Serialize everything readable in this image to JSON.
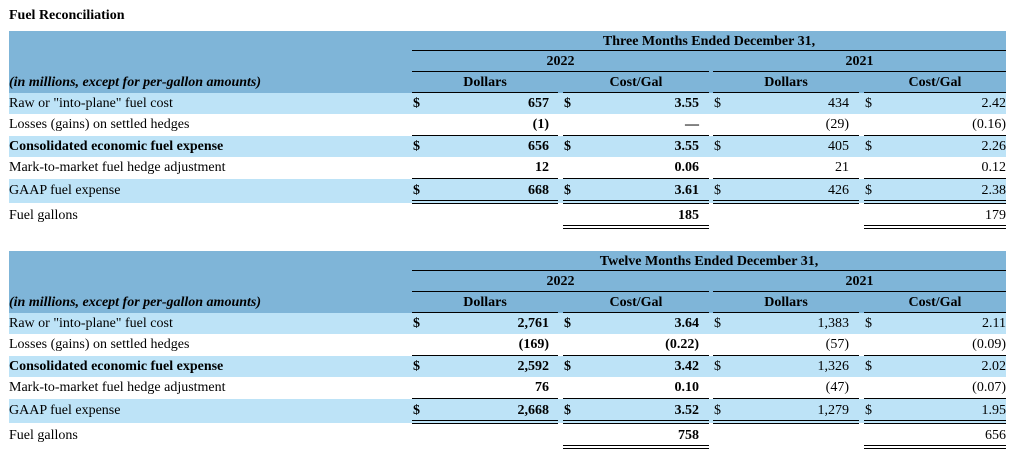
{
  "title": "Fuel Reconciliation",
  "sections": [
    {
      "period": "Three Months Ended December 31,",
      "year_current": "2022",
      "year_prior": "2021",
      "row_header": "(in millions, except for per-gallon amounts)",
      "col_dollars": "Dollars",
      "col_costgal": "Cost/Gal",
      "rows": [
        {
          "label": "Raw or \"into-plane\" fuel cost",
          "bold": false,
          "cs": "$",
          "cd": "657",
          "cgs": "$",
          "cg": "3.55",
          "ps": "$",
          "pd": "434",
          "pgs": "$",
          "pg": "2.42"
        },
        {
          "label": "Losses (gains) on settled hedges",
          "bold": false,
          "cs": "",
          "cd": "(1)",
          "cgs": "",
          "cg": "—",
          "ps": "",
          "pd": "(29)",
          "pgs": "",
          "pg": "(0.16)"
        },
        {
          "label": "Consolidated economic fuel expense",
          "bold": true,
          "cs": "$",
          "cd": "656",
          "cgs": "$",
          "cg": "3.55",
          "ps": "$",
          "pd": "405",
          "pgs": "$",
          "pg": "2.26"
        },
        {
          "label": "Mark-to-market fuel hedge adjustment",
          "bold": false,
          "cs": "",
          "cd": "12",
          "cgs": "",
          "cg": "0.06",
          "ps": "",
          "pd": "21",
          "pgs": "",
          "pg": "0.12"
        },
        {
          "label": "GAAP fuel expense",
          "bold": false,
          "cs": "$",
          "cd": "668",
          "cgs": "$",
          "cg": "3.61",
          "ps": "$",
          "pd": "426",
          "pgs": "$",
          "pg": "2.38"
        }
      ],
      "gallons_label": "Fuel gallons",
      "gallons_current": "185",
      "gallons_prior": "179"
    },
    {
      "period": "Twelve Months Ended December 31,",
      "year_current": "2022",
      "year_prior": "2021",
      "row_header": "(in millions, except for per-gallon amounts)",
      "col_dollars": "Dollars",
      "col_costgal": "Cost/Gal",
      "rows": [
        {
          "label": "Raw or \"into-plane\" fuel cost",
          "bold": false,
          "cs": "$",
          "cd": "2,761",
          "cgs": "$",
          "cg": "3.64",
          "ps": "$",
          "pd": "1,383",
          "pgs": "$",
          "pg": "2.11"
        },
        {
          "label": "Losses (gains) on settled hedges",
          "bold": false,
          "cs": "",
          "cd": "(169)",
          "cgs": "",
          "cg": "(0.22)",
          "ps": "",
          "pd": "(57)",
          "pgs": "",
          "pg": "(0.09)"
        },
        {
          "label": "Consolidated economic fuel expense",
          "bold": true,
          "cs": "$",
          "cd": "2,592",
          "cgs": "$",
          "cg": "3.42",
          "ps": "$",
          "pd": "1,326",
          "pgs": "$",
          "pg": "2.02"
        },
        {
          "label": "Mark-to-market fuel hedge adjustment",
          "bold": false,
          "cs": "",
          "cd": "76",
          "cgs": "",
          "cg": "0.10",
          "ps": "",
          "pd": "(47)",
          "pgs": "",
          "pg": "(0.07)"
        },
        {
          "label": "GAAP fuel expense",
          "bold": false,
          "cs": "$",
          "cd": "2,668",
          "cgs": "$",
          "cg": "3.52",
          "ps": "$",
          "pd": "1,279",
          "pgs": "$",
          "pg": "1.95"
        }
      ],
      "gallons_label": "Fuel gallons",
      "gallons_current": "758",
      "gallons_prior": "656"
    }
  ]
}
